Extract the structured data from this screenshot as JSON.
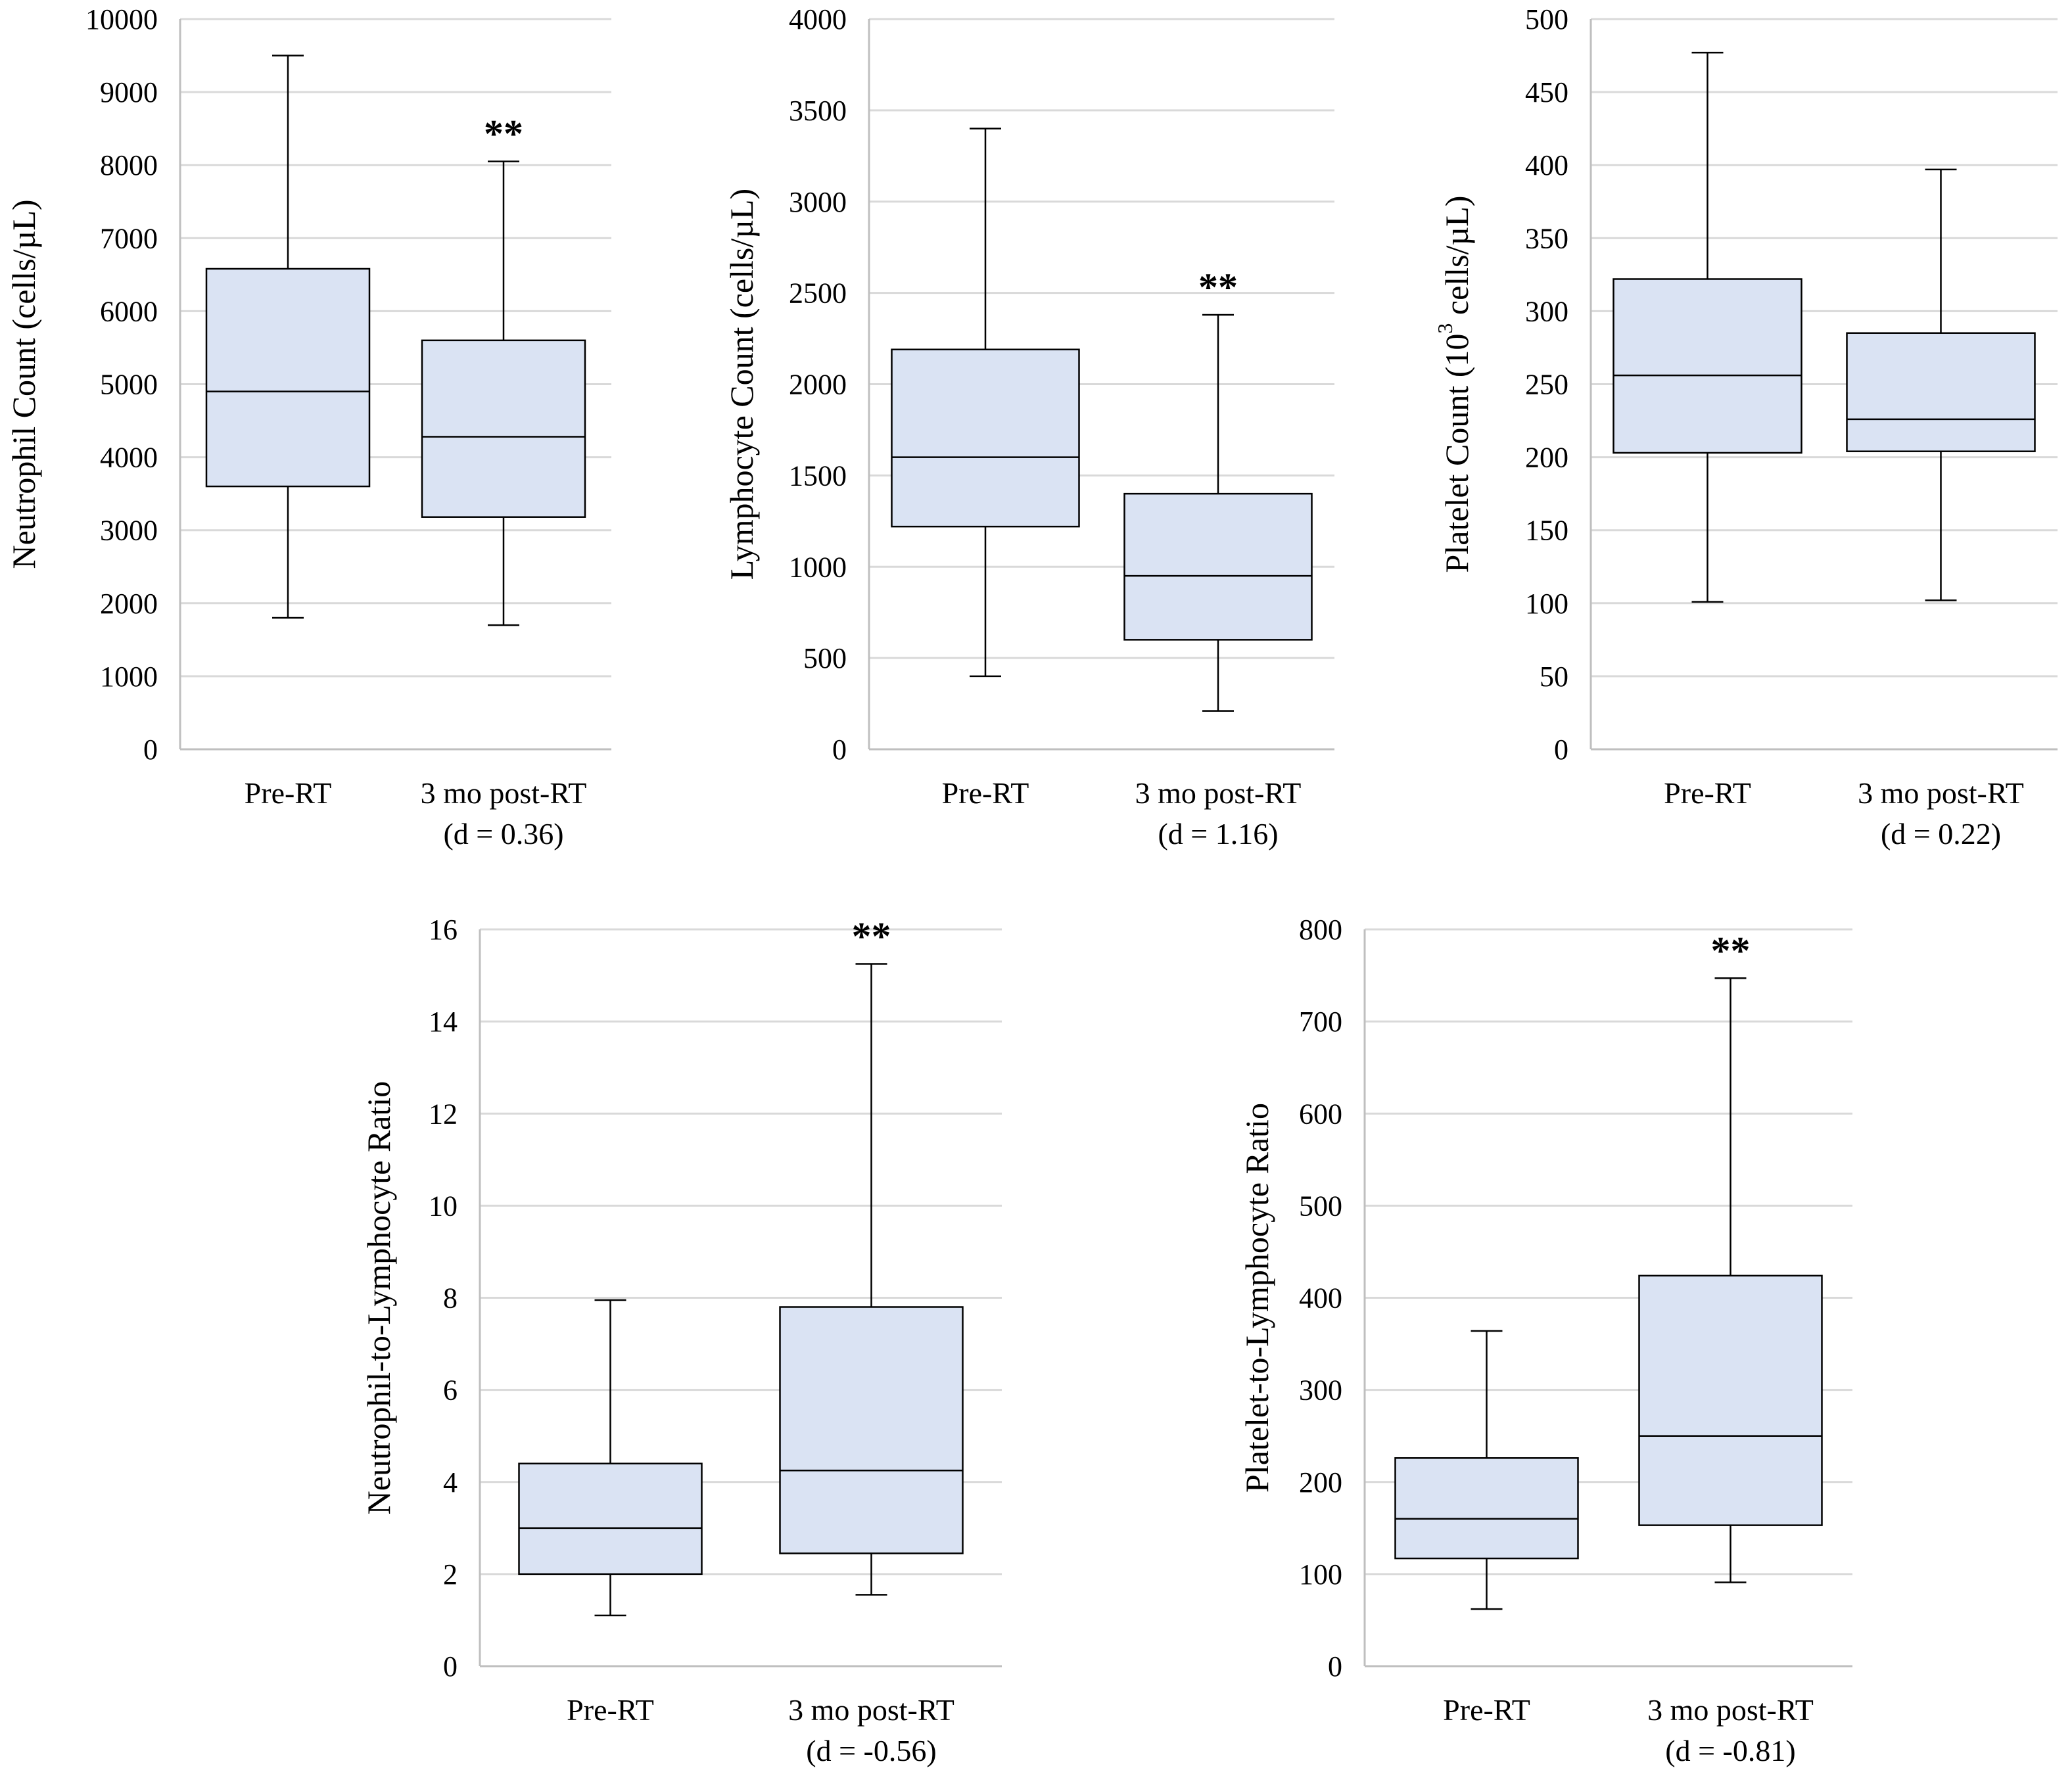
{
  "figure_title": "",
  "chart_data": [
    {
      "type": "box",
      "ylabel": "Neutrophil Count (cells/µL)",
      "ylim": [
        0,
        10000
      ],
      "ticks": [
        0,
        1000,
        2000,
        3000,
        4000,
        5000,
        6000,
        7000,
        8000,
        9000,
        10000
      ],
      "categories": [
        {
          "label": "Pre-RT",
          "sublabel": "",
          "min": 1800,
          "q1": 3600,
          "median": 4900,
          "q3": 6580,
          "max": 9500,
          "sig": ""
        },
        {
          "label": "3 mo post-RT",
          "sublabel": "(d = 0.36)",
          "min": 1700,
          "q1": 3180,
          "median": 4280,
          "q3": 5600,
          "max": 8050,
          "sig": "**"
        }
      ]
    },
    {
      "type": "box",
      "ylabel": "Lymphocyte Count (cells/µL)",
      "ylim": [
        0,
        4000
      ],
      "ticks": [
        0,
        500,
        1000,
        1500,
        2000,
        2500,
        3000,
        3500,
        4000
      ],
      "categories": [
        {
          "label": "Pre-RT",
          "sublabel": "",
          "min": 400,
          "q1": 1220,
          "median": 1600,
          "q3": 2190,
          "max": 3400,
          "sig": ""
        },
        {
          "label": "3 mo post-RT",
          "sublabel": "(d = 1.16)",
          "min": 210,
          "q1": 600,
          "median": 950,
          "q3": 1400,
          "max": 2380,
          "sig": "**"
        }
      ]
    },
    {
      "type": "box",
      "ylabel": "Platelet Count (10",
      "ylabel_sup": "3",
      "ylabel_suffix": " cells/µL)",
      "ylim": [
        0,
        500
      ],
      "ticks": [
        0,
        50,
        100,
        150,
        200,
        250,
        300,
        350,
        400,
        450,
        500
      ],
      "categories": [
        {
          "label": "Pre-RT",
          "sublabel": "",
          "min": 101,
          "q1": 203,
          "median": 256,
          "q3": 322,
          "max": 477,
          "sig": ""
        },
        {
          "label": "3 mo post-RT",
          "sublabel": "(d = 0.22)",
          "min": 102,
          "q1": 204,
          "median": 226,
          "q3": 285,
          "max": 397,
          "sig": ""
        }
      ]
    },
    {
      "type": "box",
      "ylabel": "Neutrophil-to-Lymphocyte Ratio",
      "ylim": [
        0,
        16
      ],
      "ticks": [
        0,
        2,
        4,
        6,
        8,
        10,
        12,
        14,
        16
      ],
      "categories": [
        {
          "label": "Pre-RT",
          "sublabel": "",
          "min": 1.1,
          "q1": 2.0,
          "median": 3.0,
          "q3": 4.4,
          "max": 7.95,
          "sig": ""
        },
        {
          "label": "3 mo post-RT",
          "sublabel": "(d = -0.56)",
          "min": 1.55,
          "q1": 2.45,
          "median": 4.25,
          "q3": 7.8,
          "max": 15.25,
          "sig": "**"
        }
      ]
    },
    {
      "type": "box",
      "ylabel": "Platelet-to-Lymphocyte Ratio",
      "ylim": [
        0,
        800
      ],
      "ticks": [
        0,
        100,
        200,
        300,
        400,
        500,
        600,
        700,
        800
      ],
      "categories": [
        {
          "label": "Pre-RT",
          "sublabel": "",
          "min": 62,
          "q1": 117,
          "median": 160,
          "q3": 226,
          "max": 364,
          "sig": ""
        },
        {
          "label": "3 mo post-RT",
          "sublabel": "(d = -0.81)",
          "min": 91,
          "q1": 153,
          "median": 250,
          "q3": 424,
          "max": 747,
          "sig": "**"
        }
      ]
    }
  ]
}
